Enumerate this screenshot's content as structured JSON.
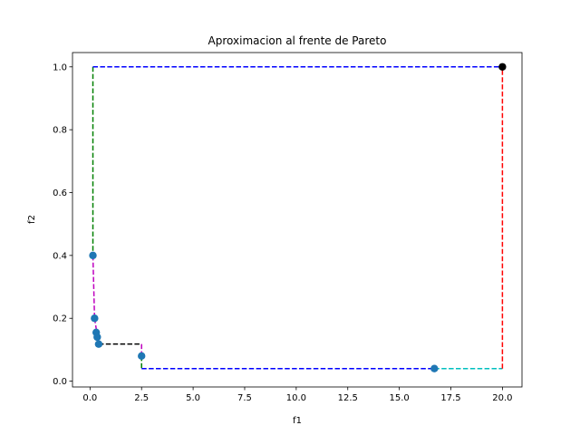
{
  "chart_data": {
    "type": "scatter",
    "title": "Aproximacion al frente de Pareto",
    "xlabel": "f1",
    "ylabel": "f2",
    "xlim": [
      -0.85,
      20.95
    ],
    "ylim": [
      -0.0185,
      1.0455
    ],
    "xticks": [
      0.0,
      2.5,
      5.0,
      7.5,
      10.0,
      12.5,
      15.0,
      17.5,
      20.0
    ],
    "xtick_labels": [
      "0.0",
      "2.5",
      "5.0",
      "7.5",
      "10.0",
      "12.5",
      "15.0",
      "17.5",
      "20.0"
    ],
    "yticks": [
      0.0,
      0.2,
      0.4,
      0.6,
      0.8,
      1.0
    ],
    "ytick_labels": [
      "0.0",
      "0.2",
      "0.4",
      "0.6",
      "0.8",
      "1.0"
    ],
    "grid": false,
    "pareto_points": {
      "color": "#1f77b4",
      "x": [
        0.14,
        0.22,
        0.3,
        0.35,
        0.42,
        2.5,
        16.7
      ],
      "y": [
        0.4,
        0.2,
        0.155,
        0.14,
        0.118,
        0.08,
        0.04
      ]
    },
    "reference_point": {
      "x": 20.0,
      "y": 1.0,
      "color": "#000000"
    },
    "segments": [
      {
        "color": "#008000",
        "x": [
          0.14,
          0.14
        ],
        "y": [
          1.0,
          0.4
        ]
      },
      {
        "color": "#bf00bf",
        "x": [
          0.14,
          0.22
        ],
        "y": [
          0.4,
          0.2
        ]
      },
      {
        "color": "#bf00bf",
        "x": [
          0.22,
          0.42
        ],
        "y": [
          0.2,
          0.118
        ]
      },
      {
        "color": "#000000",
        "x": [
          0.42,
          2.5
        ],
        "y": [
          0.118,
          0.118
        ]
      },
      {
        "color": "#bf00bf",
        "x": [
          2.5,
          2.5
        ],
        "y": [
          0.118,
          0.08
        ]
      },
      {
        "color": "#008000",
        "x": [
          2.5,
          2.5
        ],
        "y": [
          0.08,
          0.04
        ]
      },
      {
        "color": "#0000ff",
        "x": [
          2.5,
          16.7
        ],
        "y": [
          0.04,
          0.04
        ]
      },
      {
        "color": "#00bfbf",
        "x": [
          16.7,
          20.0
        ],
        "y": [
          0.04,
          0.04
        ]
      },
      {
        "color": "#ff0000",
        "x": [
          20.0,
          20.0
        ],
        "y": [
          0.04,
          1.0
        ]
      },
      {
        "color": "#0000ff",
        "x": [
          0.14,
          20.0
        ],
        "y": [
          1.0,
          1.0
        ]
      }
    ]
  }
}
